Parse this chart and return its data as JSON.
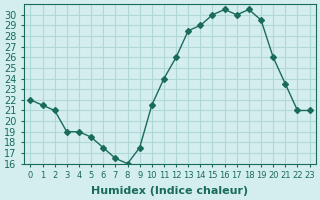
{
  "x": [
    0,
    1,
    2,
    3,
    4,
    5,
    6,
    7,
    8,
    9,
    10,
    11,
    12,
    13,
    14,
    15,
    16,
    17,
    18,
    19,
    20,
    21,
    22,
    23
  ],
  "y": [
    22,
    21.5,
    21,
    19,
    19,
    18.5,
    17.5,
    16.5,
    16,
    17.5,
    21.5,
    24,
    26,
    28.5,
    29,
    30,
    30.5,
    30,
    30.5,
    29.5,
    26,
    23.5,
    21,
    21
  ],
  "line_color": "#1a6b5a",
  "marker": "D",
  "marker_size": 3,
  "bg_color": "#d4eeee",
  "grid_color": "#b0d8d8",
  "xlabel": "Humidex (Indice chaleur)",
  "ylim": [
    16,
    31
  ],
  "xlim": [
    -0.5,
    23.5
  ],
  "yticks": [
    16,
    17,
    18,
    19,
    20,
    21,
    22,
    23,
    24,
    25,
    26,
    27,
    28,
    29,
    30
  ],
  "xtick_labels": [
    "0",
    "1",
    "2",
    "3",
    "4",
    "5",
    "6",
    "7",
    "8",
    "9",
    "10",
    "11",
    "12",
    "13",
    "14",
    "15",
    "16",
    "17",
    "18",
    "19",
    "20",
    "21",
    "22",
    "23"
  ],
  "font_color": "#1a6b5a",
  "label_fontsize": 8,
  "tick_fontsize": 7
}
